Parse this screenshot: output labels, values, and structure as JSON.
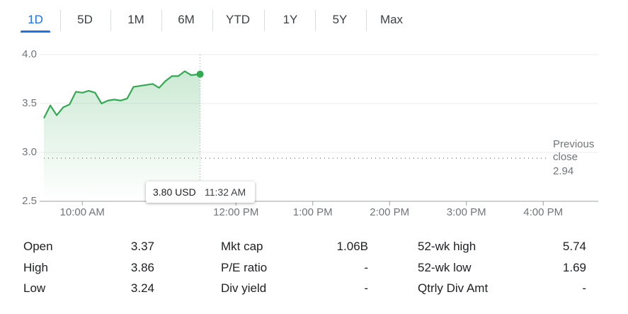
{
  "tabs": [
    "1D",
    "5D",
    "1M",
    "6M",
    "YTD",
    "1Y",
    "5Y",
    "Max"
  ],
  "selected_tab": 0,
  "chart_data": {
    "type": "line",
    "x": [
      "09:30",
      "09:35",
      "09:40",
      "09:45",
      "09:50",
      "09:55",
      "10:00",
      "10:05",
      "10:10",
      "10:15",
      "10:20",
      "10:25",
      "10:30",
      "10:35",
      "10:40",
      "10:45",
      "10:50",
      "10:55",
      "11:00",
      "11:05",
      "11:10",
      "11:15",
      "11:20",
      "11:25",
      "11:32"
    ],
    "series": [
      {
        "color": "#34a853",
        "values": [
          3.35,
          3.48,
          3.38,
          3.46,
          3.49,
          3.62,
          3.61,
          3.63,
          3.61,
          3.5,
          3.53,
          3.54,
          3.53,
          3.55,
          3.67,
          3.68,
          3.69,
          3.7,
          3.66,
          3.73,
          3.78,
          3.78,
          3.83,
          3.79,
          3.8
        ]
      }
    ],
    "xlim": [
      "09:30",
      "16:43"
    ],
    "xticks": [
      {
        "value": "10:00",
        "label": "10:00 AM"
      },
      {
        "value": "12:00",
        "label": "12:00 PM"
      },
      {
        "value": "13:00",
        "label": "1:00 PM"
      },
      {
        "value": "14:00",
        "label": "2:00 PM"
      },
      {
        "value": "15:00",
        "label": "3:00 PM"
      },
      {
        "value": "16:00",
        "label": "4:00 PM"
      }
    ],
    "ylim": [
      2.5,
      4
    ],
    "yticks": [
      2.5,
      {
        "value": 3,
        "label": "3.0"
      },
      3.5,
      {
        "value": 4,
        "label": "4.0"
      }
    ],
    "grid": true,
    "previous_close": {
      "label": "Previous close",
      "value": 2.94
    },
    "tooltip": {
      "price": "3.80 USD",
      "time": "11:32 AM"
    }
  },
  "stats": [
    [
      {
        "label": "Open",
        "value": 3.37
      },
      {
        "label": "High",
        "value": 3.86
      },
      {
        "label": "Low",
        "value": 3.24
      }
    ],
    [
      {
        "label": "Mkt cap",
        "value": "1.06B"
      },
      {
        "label": "P/E ratio",
        "value": "-"
      },
      {
        "label": "Div yield",
        "value": "-"
      }
    ],
    [
      {
        "label": "52-wk high",
        "value": 5.74
      },
      {
        "label": "52-wk low",
        "value": 1.69
      },
      {
        "label": "Qtrly Div Amt",
        "value": "-"
      }
    ]
  ]
}
